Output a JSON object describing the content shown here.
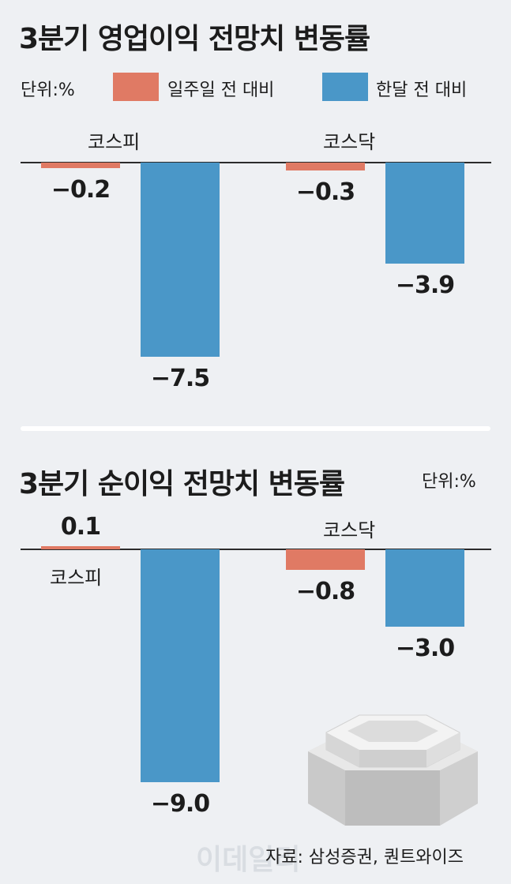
{
  "colors": {
    "week": "#e07a64",
    "month": "#4a97c8",
    "background": "#eef0f3"
  },
  "legend": {
    "unit": "단위:%",
    "items": [
      {
        "label": "일주일 전 대비",
        "color": "#e07a64"
      },
      {
        "label": "한달 전 대비",
        "color": "#4a97c8"
      }
    ]
  },
  "chart_data": [
    {
      "type": "bar",
      "title": "3분기 영업이익 전망치 변동률",
      "unit": "단위:%",
      "categories": [
        "코스피",
        "코스닥"
      ],
      "series": [
        {
          "name": "일주일 전 대비",
          "values": [
            -0.2,
            -0.3
          ]
        },
        {
          "name": "한달 전 대비",
          "values": [
            -7.5,
            -3.9
          ]
        }
      ],
      "value_labels": [
        [
          "−0.2",
          "−0.3"
        ],
        [
          "−7.5",
          "−3.9"
        ]
      ],
      "ylim": [
        -9,
        0.2
      ]
    },
    {
      "type": "bar",
      "title": "3분기 순이익 전망치 변동률",
      "unit": "단위:%",
      "categories": [
        "코스피",
        "코스닥"
      ],
      "series": [
        {
          "name": "일주일 전 대비",
          "values": [
            0.1,
            -0.8
          ]
        },
        {
          "name": "한달 전 대비",
          "values": [
            -9.0,
            -3.0
          ]
        }
      ],
      "value_labels": [
        [
          "0.1",
          "−0.8"
        ],
        [
          "−9.0",
          "−3.0"
        ]
      ],
      "ylim": [
        -9,
        0.2
      ]
    }
  ],
  "source": "자료: 삼성증권, 퀀트와이즈",
  "watermark": "이데일리"
}
